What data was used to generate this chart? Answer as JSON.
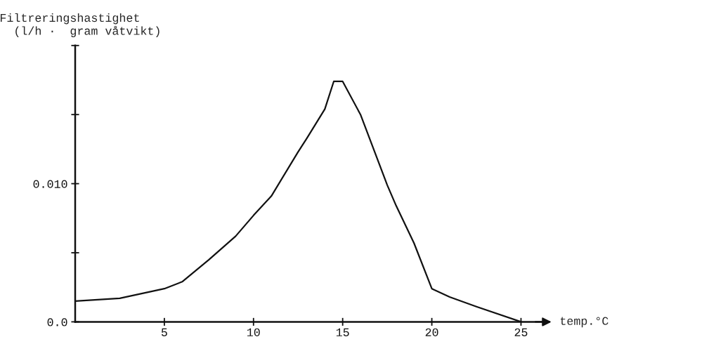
{
  "chart_data": {
    "type": "line",
    "ylabel": "Filtreringshastighet\n  (l/h ·  gram våtvikt)",
    "xlabel": "temp.°C",
    "x": [
      0,
      2.5,
      5,
      6,
      7.5,
      9,
      10,
      11,
      12.5,
      13,
      14,
      14.5,
      15,
      16,
      17.5,
      18,
      19,
      20,
      21,
      22.5,
      25
    ],
    "series": [
      {
        "color": "#111111",
        "values": [
          0.0015,
          0.0017,
          0.0024,
          0.0029,
          0.0045,
          0.0062,
          0.0077,
          0.0091,
          0.0123,
          0.0133,
          0.0154,
          0.0174,
          0.0174,
          0.015,
          0.0099,
          0.0084,
          0.0057,
          0.0024,
          0.0018,
          0.0011,
          0.0
        ]
      }
    ],
    "xlim": [
      0,
      26.5
    ],
    "ylim": [
      0,
      0.02
    ],
    "xticks": [
      5,
      10,
      15,
      20,
      25
    ],
    "yticks": [
      {
        "value": 0,
        "label": "0.0"
      },
      {
        "value": 0.005,
        "label": null
      },
      {
        "value": 0.01,
        "label": "0.010"
      },
      {
        "value": 0.015,
        "label": null
      },
      {
        "value": 0.02,
        "label": null
      }
    ],
    "grid": false,
    "marker": "none",
    "line_style": "solid"
  }
}
